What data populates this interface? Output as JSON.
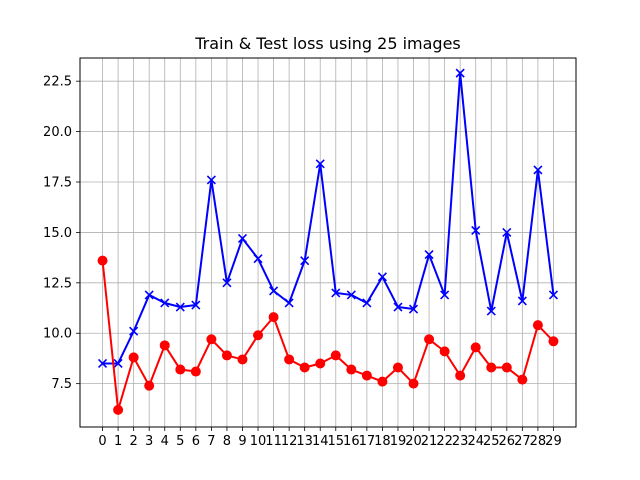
{
  "chart_data": {
    "type": "line",
    "title": "Train & Test loss using 25 images",
    "xlabel": "",
    "ylabel": "",
    "x": [
      0,
      1,
      2,
      3,
      4,
      5,
      6,
      7,
      8,
      9,
      10,
      11,
      12,
      13,
      14,
      15,
      16,
      17,
      18,
      19,
      20,
      21,
      22,
      23,
      24,
      25,
      26,
      27,
      28,
      29
    ],
    "xticks": [
      "0",
      "1",
      "2",
      "3",
      "4",
      "5",
      "6",
      "7",
      "8",
      "9",
      "10",
      "11",
      "12",
      "13",
      "14",
      "15",
      "16",
      "17",
      "18",
      "19",
      "20",
      "21",
      "22",
      "23",
      "24",
      "25",
      "26",
      "27",
      "28",
      "29"
    ],
    "yticks": [
      "7.5",
      "10.0",
      "12.5",
      "15.0",
      "17.5",
      "20.0",
      "22.5"
    ],
    "ytick_values": [
      7.5,
      10.0,
      12.5,
      15.0,
      17.5,
      20.0,
      22.5
    ],
    "xlim": [
      -1.45,
      30.45
    ],
    "ylim": [
      5.35,
      23.65
    ],
    "grid": true,
    "series": [
      {
        "color": "#0000ff",
        "marker": "x",
        "values": [
          8.5,
          8.5,
          10.1,
          11.9,
          11.5,
          11.3,
          11.4,
          17.6,
          12.5,
          14.7,
          13.7,
          12.1,
          11.5,
          13.6,
          18.4,
          12.0,
          11.9,
          11.5,
          12.8,
          11.3,
          11.2,
          13.9,
          11.9,
          22.9,
          15.1,
          11.1,
          15.0,
          11.6,
          18.1,
          11.9
        ]
      },
      {
        "color": "#ff0000",
        "marker": "o",
        "values": [
          13.6,
          6.2,
          8.8,
          7.4,
          9.4,
          8.2,
          8.1,
          9.7,
          8.9,
          8.7,
          9.9,
          10.8,
          8.7,
          8.3,
          8.5,
          8.9,
          8.2,
          7.9,
          7.6,
          8.3,
          7.5,
          9.7,
          9.1,
          7.9,
          9.3,
          8.3,
          8.3,
          7.7,
          10.4,
          9.6
        ]
      }
    ]
  }
}
